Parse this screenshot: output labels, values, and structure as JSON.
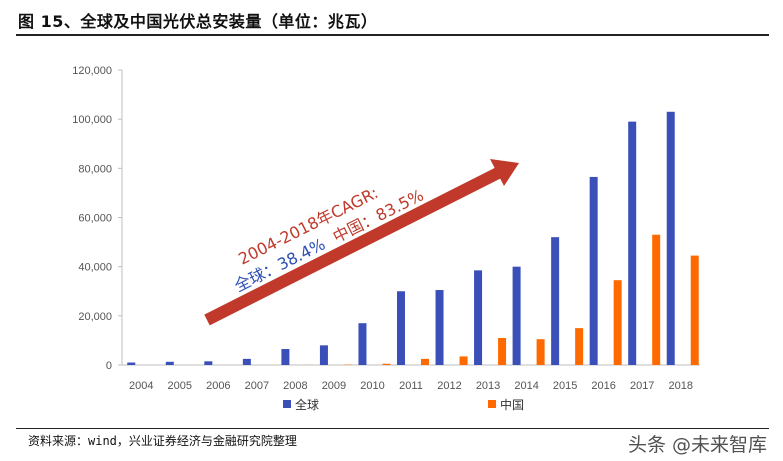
{
  "title": "图 15、全球及中国光伏总安装量（单位：兆瓦）",
  "source": "资料来源：wind，兴业证券经济与金融研究院整理",
  "watermark": "头条 @未来智库",
  "annotation": {
    "line1": "2004-2018年CAGR:",
    "line2_prefix": "全球：38.4%",
    "line2_suffix": "中国：83.5%",
    "color_red": "#C0392B",
    "color_blue": "#2E4FB4"
  },
  "chart_data": {
    "type": "bar",
    "categories": [
      "2004",
      "2005",
      "2006",
      "2007",
      "2008",
      "2009",
      "2010",
      "2011",
      "2012",
      "2013",
      "2014",
      "2015",
      "2016",
      "2017",
      "2018"
    ],
    "series": [
      {
        "name": "全球",
        "color": "#3A4FB8",
        "values": [
          1000,
          1300,
          1500,
          2500,
          6500,
          8000,
          17000,
          30000,
          30500,
          38500,
          40000,
          52000,
          76500,
          99000,
          103000
        ]
      },
      {
        "name": "中国",
        "color": "#FF6A00",
        "values": [
          10,
          10,
          10,
          20,
          40,
          160,
          500,
          2500,
          3500,
          11000,
          10500,
          15000,
          34500,
          53000,
          44500
        ]
      }
    ],
    "y_ticks": [
      "0",
      "20,000",
      "40,000",
      "60,000",
      "80,000",
      "100,000",
      "120,000"
    ],
    "ylim": [
      0,
      120000
    ],
    "grid": false,
    "legend_position": "bottom"
  }
}
